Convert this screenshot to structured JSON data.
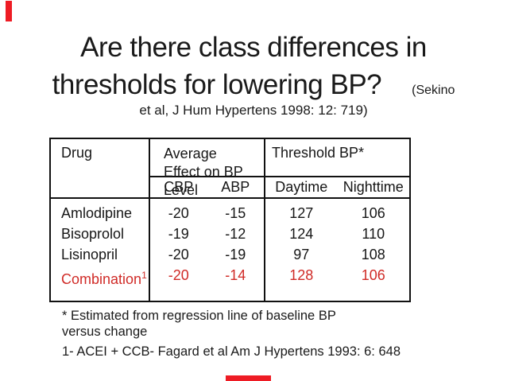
{
  "slide": {
    "title_line1": "Are there class differences in",
    "title_line2": "thresholds for lowering BP?",
    "title_ref_suffix": "(Sekino",
    "citation": "et al, J Hum Hypertens 1998: 12: 719)"
  },
  "table": {
    "headers": {
      "drug": "Drug",
      "effect": "Average Effect on BP Level",
      "threshold": "Threshold BP*"
    },
    "subheaders": {
      "cbp": "CBP",
      "abp": "ABP",
      "daytime": "Daytime",
      "nighttime": "Nighttime"
    },
    "rows": [
      {
        "drug": "Amlodipine",
        "sup": "",
        "cbp": "-20",
        "abp": "-15",
        "daytime": "127",
        "nighttime": "106",
        "highlight": false
      },
      {
        "drug": "Bisoprolol",
        "sup": "",
        "cbp": "-19",
        "abp": "-12",
        "daytime": "124",
        "nighttime": "110",
        "highlight": false
      },
      {
        "drug": "Lisinopril",
        "sup": "",
        "cbp": "-20",
        "abp": "-19",
        "daytime": "97",
        "nighttime": "108",
        "highlight": false
      },
      {
        "drug": "Combination",
        "sup": "1",
        "cbp": "-20",
        "abp": "-14",
        "daytime": "128",
        "nighttime": "106",
        "highlight": true
      }
    ]
  },
  "footnotes": {
    "asterisk": "* Estimated from regression line of baseline BP versus change",
    "numbered": "1- ACEI + CCB- Fagard et al Am J Hypertens 1993: 6: 648"
  },
  "colors": {
    "accent_red": "#ee1c24",
    "highlight_red": "#d02b27",
    "text": "#1a1a1a",
    "border": "#111111"
  }
}
